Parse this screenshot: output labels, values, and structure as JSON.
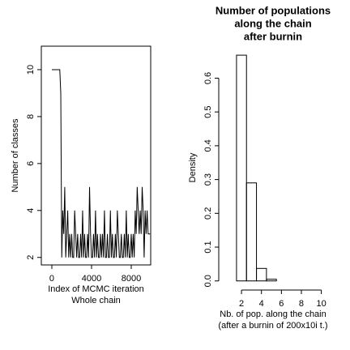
{
  "chart_data": [
    {
      "type": "line",
      "color": "#000000",
      "ylabel": "Number of classes",
      "xlabel": "Index of MCMC iteration",
      "subtitle": "Whole chain",
      "x": [
        0,
        100,
        200,
        300,
        400,
        500,
        600,
        700,
        800,
        900,
        1000,
        1100,
        1200,
        1300,
        1400,
        1500,
        1600,
        1700,
        1800,
        1900,
        2000,
        2100,
        2200,
        2300,
        2400,
        2500,
        2600,
        2700,
        2800,
        2900,
        3000,
        3100,
        3200,
        3300,
        3400,
        3500,
        3600,
        3700,
        3800,
        3900,
        4000,
        4100,
        4200,
        4300,
        4400,
        4500,
        4600,
        4700,
        4800,
        4900,
        5000,
        5100,
        5200,
        5300,
        5400,
        5500,
        5600,
        5700,
        5800,
        5900,
        6000,
        6100,
        6200,
        6300,
        6400,
        6500,
        6600,
        6700,
        6800,
        6900,
        7000,
        7100,
        7200,
        7300,
        7400,
        7500,
        7600,
        7700,
        7800,
        7900,
        8000,
        8100,
        8200,
        8300,
        8400,
        8500,
        8600,
        8700,
        8800,
        8900,
        9000,
        9100,
        9200,
        9300,
        9400,
        9500,
        9600,
        9700,
        9800,
        9900
      ],
      "values": [
        10,
        10,
        10,
        10,
        10,
        10,
        10,
        10,
        10,
        9,
        2,
        4,
        3,
        5,
        2,
        3,
        4,
        2,
        3,
        2,
        3,
        2,
        2,
        4,
        3,
        2,
        3,
        2,
        2,
        3,
        2,
        4,
        2,
        3,
        2,
        2,
        3,
        2,
        5,
        3,
        2,
        2,
        3,
        2,
        4,
        2,
        3,
        2,
        2,
        3,
        2,
        3,
        2,
        4,
        2,
        2,
        3,
        2,
        2,
        4,
        2,
        3,
        2,
        2,
        3,
        2,
        4,
        3,
        2,
        2,
        3,
        2,
        2,
        3,
        2,
        4,
        2,
        3,
        2,
        2,
        3,
        2,
        3,
        2,
        4,
        3,
        5,
        4,
        3,
        4,
        3,
        5,
        4,
        2,
        4,
        3,
        4,
        3,
        3,
        3
      ],
      "xlim": [
        -1060,
        9960
      ],
      "xticks": [
        0,
        4000,
        8000
      ],
      "ylim": [
        1.68,
        11
      ],
      "yticks": [
        2,
        4,
        6,
        8,
        10
      ]
    },
    {
      "type": "histogram",
      "color": "#000000",
      "title": [
        "Number of populations",
        "along the chain",
        "after burnin"
      ],
      "ylabel": "Density",
      "xlabel": "Nb. of pop. along the chain",
      "subtitle": "(after a burnin of 200x10i t.)",
      "bins": [
        1.5,
        2.5,
        3.5,
        4.5,
        5.5,
        6.5,
        7.5,
        8.5,
        9.5,
        10.5
      ],
      "values": [
        0.668,
        0.29,
        0.037,
        0.005,
        0,
        0,
        0,
        0,
        0
      ],
      "xlim": [
        -0.28,
        10.6
      ],
      "xticks": [
        2,
        4,
        6,
        8,
        10
      ],
      "ylim": [
        -0.027,
        0.697
      ],
      "yticks": [
        {
          "value": 0,
          "label": "0.0"
        },
        0.1,
        0.2,
        0.3,
        0.4,
        0.5,
        0.6
      ]
    }
  ]
}
